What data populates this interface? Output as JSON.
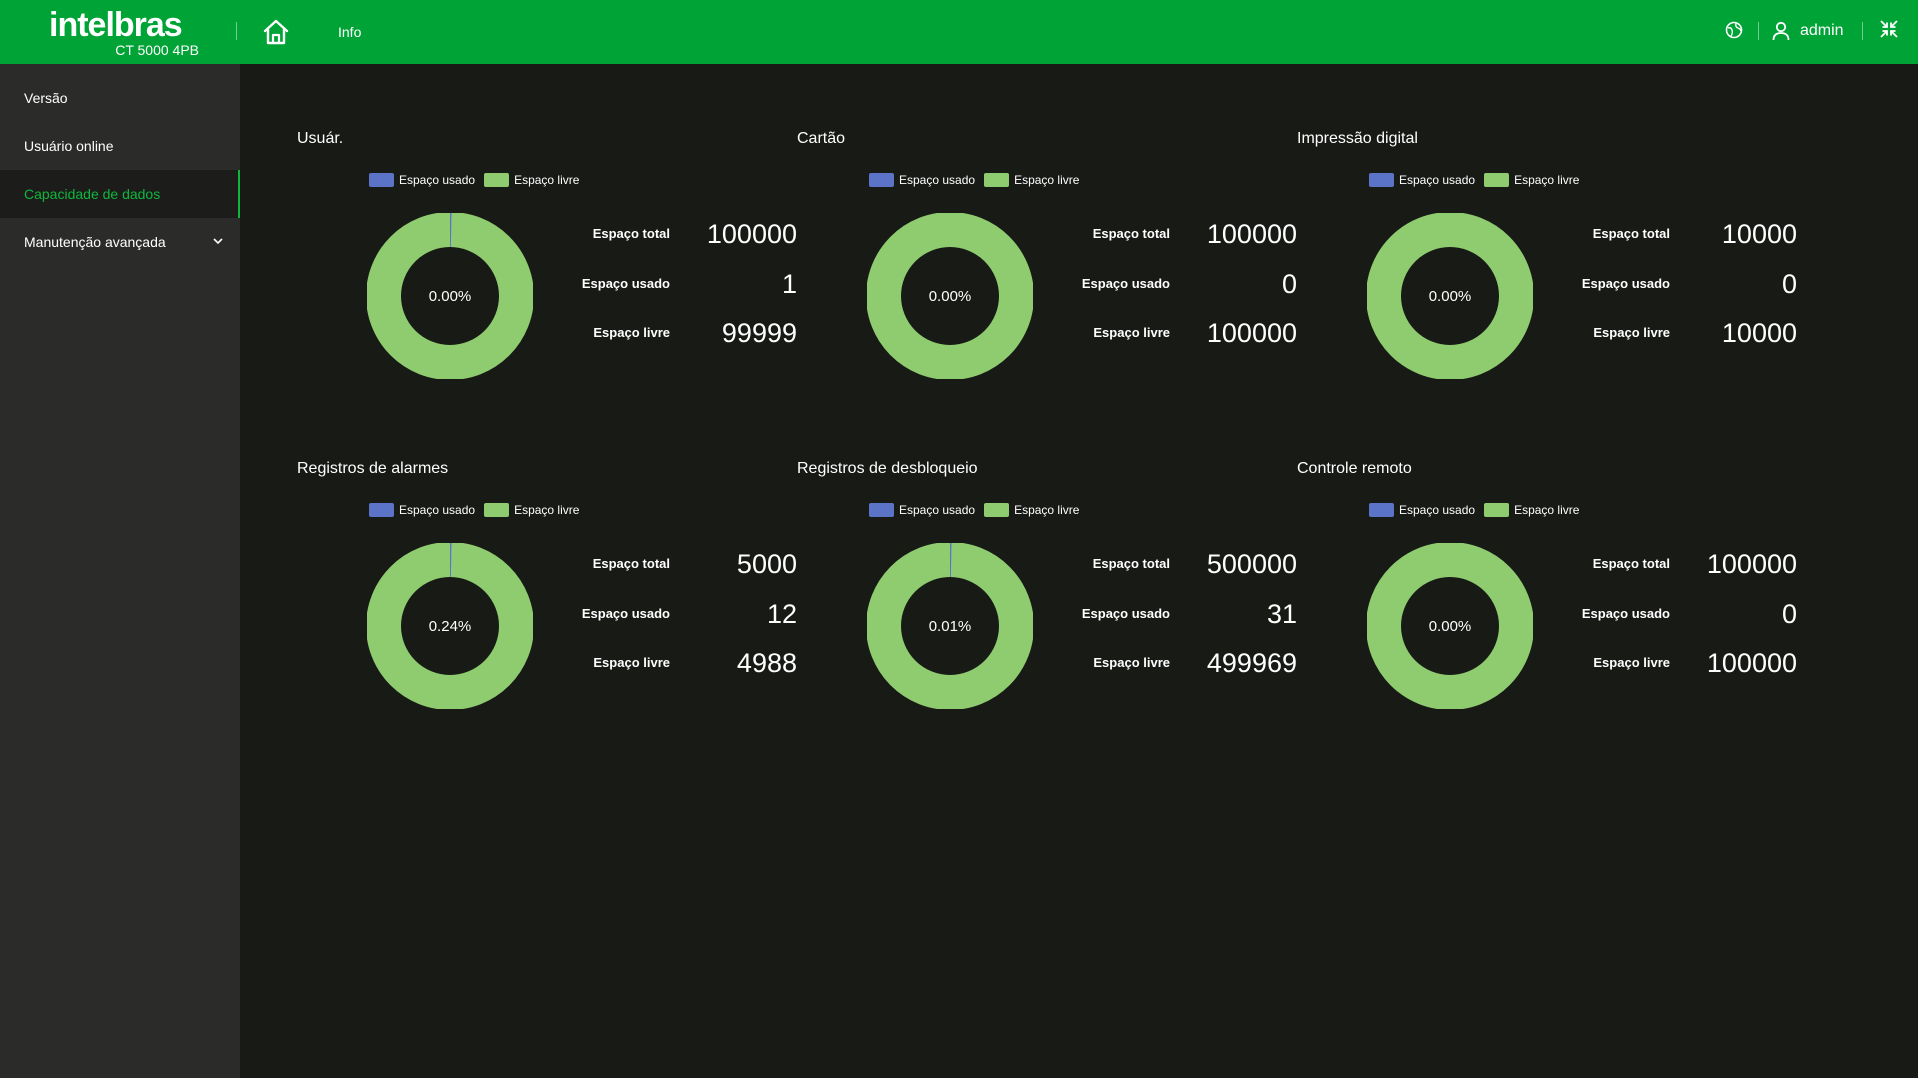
{
  "header": {
    "brand": "intelbras",
    "model": "CT 5000 4PB",
    "nav_info": "Info",
    "user_name": "admin",
    "icons": [
      "home-icon",
      "globe-icon",
      "user-icon",
      "shrink-icon"
    ]
  },
  "sidebar": {
    "items": [
      {
        "label": "Versão"
      },
      {
        "label": "Usuário online"
      },
      {
        "label": "Capacidade de dados",
        "active": true
      },
      {
        "label": "Manutenção avançada",
        "expandable": true
      }
    ]
  },
  "legend": {
    "used": "Espaço usado",
    "free": "Espaço livre"
  },
  "stat_labels": {
    "total": "Espaço total",
    "used": "Espaço usado",
    "free": "Espaço livre"
  },
  "colors": {
    "header": "#00a335",
    "accent": "#10b63c",
    "used": "#5b74c8",
    "free": "#8fcc6f",
    "background": "#181a16",
    "sidebar": "#2b2c2a"
  },
  "cards": [
    {
      "title": "Usuár.",
      "percent_label": "0.00%",
      "total": "100000",
      "used": "1",
      "free": "99999"
    },
    {
      "title": "Cartão",
      "percent_label": "0.00%",
      "total": "100000",
      "used": "0",
      "free": "100000"
    },
    {
      "title": "Impressão digital",
      "percent_label": "0.00%",
      "total": "10000",
      "used": "0",
      "free": "10000"
    },
    {
      "title": "Registros de alarmes",
      "percent_label": "0.24%",
      "total": "5000",
      "used": "12",
      "free": "4988"
    },
    {
      "title": "Registros de desbloqueio",
      "percent_label": "0.01%",
      "total": "500000",
      "used": "31",
      "free": "499969"
    },
    {
      "title": "Controle remoto",
      "percent_label": "0.00%",
      "total": "100000",
      "used": "0",
      "free": "100000"
    }
  ]
}
